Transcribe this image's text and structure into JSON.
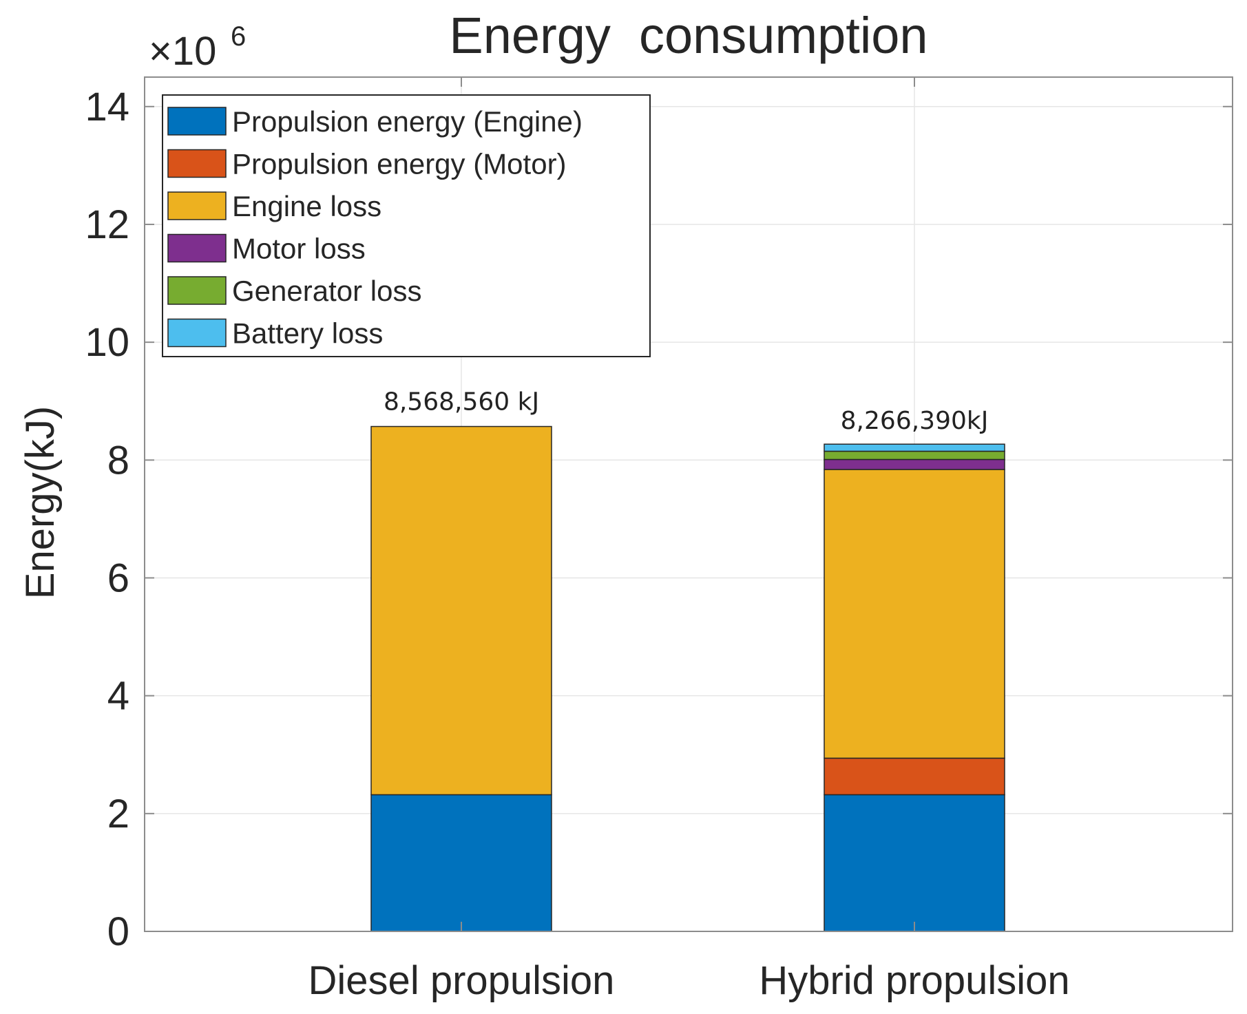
{
  "chart_data": {
    "type": "bar",
    "stacked": true,
    "title": "Energy  consumption",
    "xlabel": "",
    "ylabel": "Energy(kJ)",
    "y_exponent_prefix": "×10",
    "y_exponent": "6",
    "ylim": [
      0,
      14.5
    ],
    "yticks": [
      0,
      2,
      4,
      6,
      8,
      10,
      12,
      14
    ],
    "grid": true,
    "legend_position": "top-left",
    "categories": [
      "Diesel propulsion",
      "Hybrid propulsion"
    ],
    "totals_labels": [
      "8,568,560 kJ",
      "8,266,390kJ"
    ],
    "series": [
      {
        "name": "Propulsion energy (Engine)",
        "color": "#0072bd",
        "values": [
          2.32,
          2.32
        ]
      },
      {
        "name": "Propulsion energy (Motor)",
        "color": "#d95319",
        "values": [
          0,
          0.62
        ]
      },
      {
        "name": "Engine loss",
        "color": "#edb120",
        "values": [
          6.25,
          4.9
        ]
      },
      {
        "name": "Motor loss",
        "color": "#7e2f8e",
        "values": [
          0,
          0.17
        ]
      },
      {
        "name": "Generator loss",
        "color": "#77ac30",
        "values": [
          0,
          0.14
        ]
      },
      {
        "name": "Battery loss",
        "color": "#4dbeee",
        "values": [
          0,
          0.12
        ]
      }
    ]
  }
}
